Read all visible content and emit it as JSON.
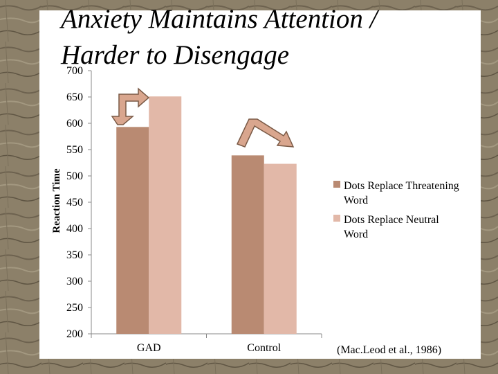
{
  "slide": {
    "title_line1": "Anxiety Maintains Attention /",
    "title_line2": "Harder to Disengage",
    "citation": "(Mac.Leod et al., 1986)"
  },
  "colors": {
    "threatening": "#b98a72",
    "neutral": "#e2b8a8",
    "arrow_fill": "#d9a68e",
    "arrow_stroke": "#7a5a46"
  },
  "chart_data": {
    "type": "bar",
    "categories": [
      "GAD",
      "Control"
    ],
    "series": [
      {
        "name": "Dots Replace Threatening Word",
        "values": [
          593,
          539
        ]
      },
      {
        "name": "Dots Replace Neutral Word",
        "values": [
          651,
          523
        ]
      }
    ],
    "ylabel": "Reaction Time",
    "xlabel": "",
    "ylim": [
      200,
      700
    ],
    "yticks": [
      200,
      250,
      300,
      350,
      400,
      450,
      500,
      550,
      600,
      650,
      700
    ],
    "legend_position": "right",
    "legend_lines": [
      [
        "Dots Replace Threatening",
        "Word"
      ],
      [
        "Dots Replace Neutral",
        "Word"
      ]
    ],
    "grid": false
  }
}
